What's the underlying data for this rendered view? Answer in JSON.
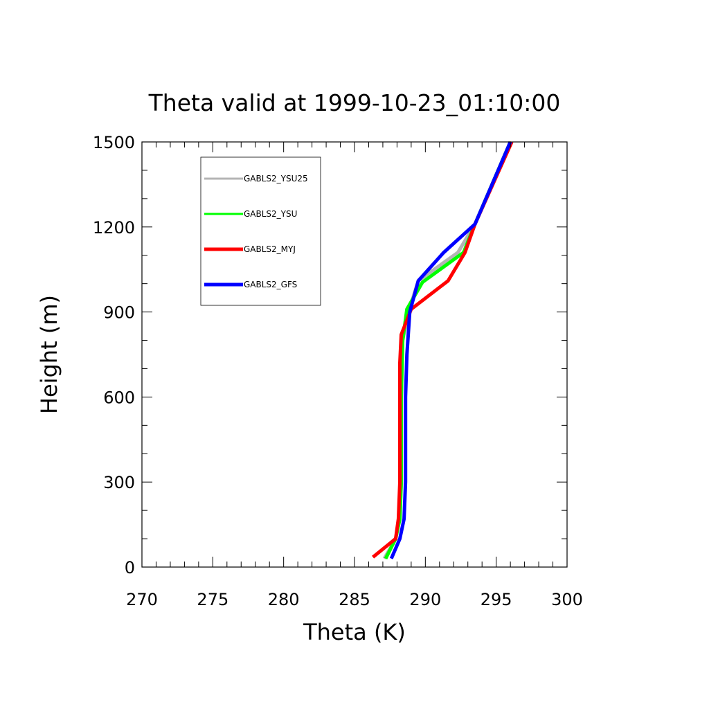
{
  "chart_data": {
    "type": "line",
    "title": "Theta valid at 1999-10-23_01:10:00",
    "xlabel": "Theta (K)",
    "ylabel": "Height (m)",
    "xlim": [
      270,
      300
    ],
    "ylim": [
      0,
      1500
    ],
    "x_ticks": [
      270,
      275,
      280,
      285,
      290,
      295,
      300
    ],
    "x_tick_labels": [
      "270",
      "275",
      "280",
      "285",
      "290",
      "295",
      "300"
    ],
    "x_minor_step": 1,
    "y_ticks": [
      0,
      300,
      600,
      900,
      1200,
      1500
    ],
    "y_tick_labels": [
      "0",
      "300",
      "600",
      "900",
      "1200",
      "1500"
    ],
    "y_minor_step": 100,
    "grid": false,
    "legend_position": "top-left",
    "series": [
      {
        "name": "GABLS2_YSU25",
        "color": "#b4b4b4",
        "points": [
          [
            287.1,
            30
          ],
          [
            287.9,
            100
          ],
          [
            288.2,
            170
          ],
          [
            288.3,
            300
          ],
          [
            288.3,
            600
          ],
          [
            288.4,
            800
          ],
          [
            288.8,
            900
          ],
          [
            289.5,
            1010
          ],
          [
            292.3,
            1110
          ],
          [
            293.5,
            1210
          ],
          [
            296.0,
            1500
          ]
        ]
      },
      {
        "name": "GABLS2_YSU",
        "color": "#00ff00",
        "points": [
          [
            287.2,
            30
          ],
          [
            287.9,
            100
          ],
          [
            288.2,
            170
          ],
          [
            288.3,
            300
          ],
          [
            288.3,
            600
          ],
          [
            288.4,
            800
          ],
          [
            288.7,
            910
          ],
          [
            289.8,
            1005
          ],
          [
            292.7,
            1110
          ],
          [
            293.5,
            1210
          ],
          [
            296.0,
            1500
          ]
        ]
      },
      {
        "name": "GABLS2_MYJ",
        "color": "#ff0000",
        "points": [
          [
            286.3,
            35
          ],
          [
            287.9,
            100
          ],
          [
            288.1,
            170
          ],
          [
            288.2,
            300
          ],
          [
            288.2,
            600
          ],
          [
            288.2,
            720
          ],
          [
            288.3,
            820
          ],
          [
            289.0,
            910
          ],
          [
            291.6,
            1010
          ],
          [
            292.8,
            1110
          ],
          [
            293.5,
            1210
          ],
          [
            296.1,
            1500
          ]
        ]
      },
      {
        "name": "GABLS2_GFS",
        "color": "#0000ff",
        "points": [
          [
            287.6,
            30
          ],
          [
            288.2,
            100
          ],
          [
            288.5,
            170
          ],
          [
            288.6,
            300
          ],
          [
            288.6,
            600
          ],
          [
            288.7,
            750
          ],
          [
            288.9,
            900
          ],
          [
            289.5,
            1010
          ],
          [
            291.3,
            1110
          ],
          [
            293.5,
            1210
          ],
          [
            296.0,
            1500
          ]
        ]
      }
    ]
  }
}
